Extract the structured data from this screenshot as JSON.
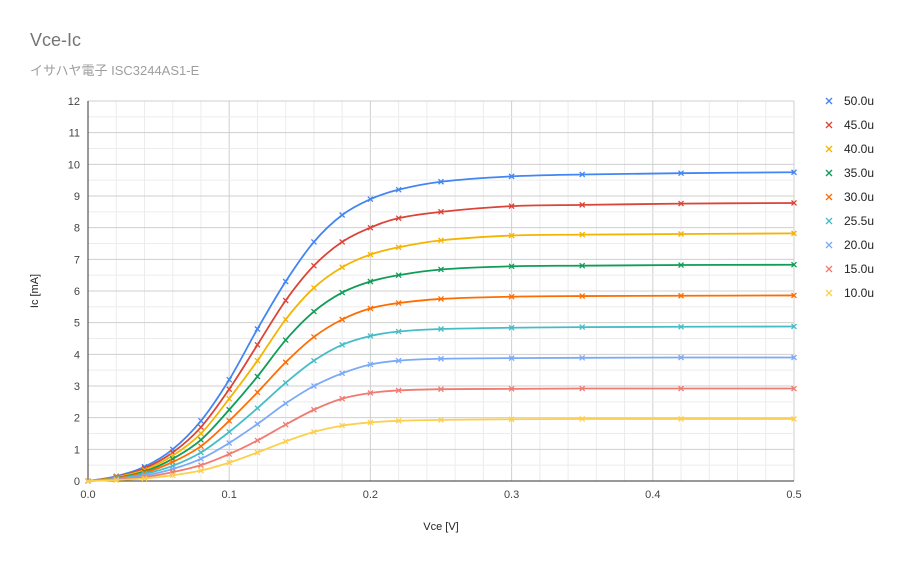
{
  "chart_data": {
    "type": "line",
    "title": "Vce-Ic",
    "subtitle": "イサハヤ電子 ISC3244AS1-E",
    "xlabel": "Vce [V]",
    "ylabel": "Ic [mA]",
    "xlim": [
      0,
      0.5
    ],
    "ylim": [
      0,
      12
    ],
    "x_ticks": [
      "0.0",
      "0.1",
      "0.2",
      "0.3",
      "0.4",
      "0.5"
    ],
    "y_ticks": [
      "0",
      "1",
      "2",
      "3",
      "4",
      "5",
      "6",
      "7",
      "8",
      "9",
      "10",
      "11",
      "12"
    ],
    "grid": true,
    "legend_position": "right",
    "series": [
      {
        "name": "50.0u",
        "color": "#4285f4",
        "sat": 9.75,
        "knee": 0.16,
        "points": [
          [
            0.0,
            0.0
          ],
          [
            0.02,
            0.15
          ],
          [
            0.04,
            0.45
          ],
          [
            0.06,
            1.0
          ],
          [
            0.08,
            1.9
          ],
          [
            0.1,
            3.2
          ],
          [
            0.12,
            4.8
          ],
          [
            0.14,
            6.3
          ],
          [
            0.16,
            7.55
          ],
          [
            0.18,
            8.4
          ],
          [
            0.2,
            8.9
          ],
          [
            0.22,
            9.2
          ],
          [
            0.25,
            9.45
          ],
          [
            0.3,
            9.62
          ],
          [
            0.35,
            9.68
          ],
          [
            0.42,
            9.72
          ],
          [
            0.5,
            9.75
          ]
        ]
      },
      {
        "name": "45.0u",
        "color": "#db4437",
        "sat": 8.78,
        "knee": 0.16,
        "points": [
          [
            0.0,
            0.0
          ],
          [
            0.02,
            0.13
          ],
          [
            0.04,
            0.4
          ],
          [
            0.06,
            0.9
          ],
          [
            0.08,
            1.7
          ],
          [
            0.1,
            2.9
          ],
          [
            0.12,
            4.3
          ],
          [
            0.14,
            5.7
          ],
          [
            0.16,
            6.8
          ],
          [
            0.18,
            7.55
          ],
          [
            0.2,
            8.0
          ],
          [
            0.22,
            8.3
          ],
          [
            0.25,
            8.5
          ],
          [
            0.3,
            8.68
          ],
          [
            0.35,
            8.72
          ],
          [
            0.42,
            8.76
          ],
          [
            0.5,
            8.78
          ]
        ]
      },
      {
        "name": "40.0u",
        "color": "#f4b400",
        "sat": 7.82,
        "knee": 0.16,
        "points": [
          [
            0.0,
            0.0
          ],
          [
            0.02,
            0.12
          ],
          [
            0.04,
            0.35
          ],
          [
            0.06,
            0.8
          ],
          [
            0.08,
            1.5
          ],
          [
            0.1,
            2.6
          ],
          [
            0.12,
            3.8
          ],
          [
            0.14,
            5.1
          ],
          [
            0.16,
            6.1
          ],
          [
            0.18,
            6.75
          ],
          [
            0.2,
            7.15
          ],
          [
            0.22,
            7.38
          ],
          [
            0.25,
            7.6
          ],
          [
            0.3,
            7.75
          ],
          [
            0.35,
            7.78
          ],
          [
            0.42,
            7.8
          ],
          [
            0.5,
            7.82
          ]
        ]
      },
      {
        "name": "35.0u",
        "color": "#0f9d58",
        "sat": 6.83,
        "knee": 0.16,
        "points": [
          [
            0.0,
            0.0
          ],
          [
            0.02,
            0.1
          ],
          [
            0.04,
            0.3
          ],
          [
            0.06,
            0.7
          ],
          [
            0.08,
            1.3
          ],
          [
            0.1,
            2.25
          ],
          [
            0.12,
            3.3
          ],
          [
            0.14,
            4.45
          ],
          [
            0.16,
            5.35
          ],
          [
            0.18,
            5.95
          ],
          [
            0.2,
            6.3
          ],
          [
            0.22,
            6.5
          ],
          [
            0.25,
            6.68
          ],
          [
            0.3,
            6.78
          ],
          [
            0.35,
            6.8
          ],
          [
            0.42,
            6.82
          ],
          [
            0.5,
            6.83
          ]
        ]
      },
      {
        "name": "30.0u",
        "color": "#ff6d01",
        "sat": 5.86,
        "knee": 0.16,
        "points": [
          [
            0.0,
            0.0
          ],
          [
            0.02,
            0.09
          ],
          [
            0.04,
            0.26
          ],
          [
            0.06,
            0.6
          ],
          [
            0.08,
            1.1
          ],
          [
            0.1,
            1.9
          ],
          [
            0.12,
            2.8
          ],
          [
            0.14,
            3.75
          ],
          [
            0.16,
            4.55
          ],
          [
            0.18,
            5.1
          ],
          [
            0.2,
            5.45
          ],
          [
            0.22,
            5.62
          ],
          [
            0.25,
            5.75
          ],
          [
            0.3,
            5.82
          ],
          [
            0.35,
            5.84
          ],
          [
            0.42,
            5.85
          ],
          [
            0.5,
            5.86
          ]
        ]
      },
      {
        "name": "25.5u",
        "color": "#46bdc6",
        "sat": 4.88,
        "knee": 0.16,
        "points": [
          [
            0.0,
            0.0
          ],
          [
            0.02,
            0.07
          ],
          [
            0.04,
            0.22
          ],
          [
            0.06,
            0.48
          ],
          [
            0.08,
            0.9
          ],
          [
            0.1,
            1.55
          ],
          [
            0.12,
            2.3
          ],
          [
            0.14,
            3.1
          ],
          [
            0.16,
            3.8
          ],
          [
            0.18,
            4.3
          ],
          [
            0.2,
            4.58
          ],
          [
            0.22,
            4.72
          ],
          [
            0.25,
            4.8
          ],
          [
            0.3,
            4.84
          ],
          [
            0.35,
            4.86
          ],
          [
            0.42,
            4.87
          ],
          [
            0.5,
            4.88
          ]
        ]
      },
      {
        "name": "20.0u",
        "color": "#7baaf7",
        "sat": 3.9,
        "knee": 0.16,
        "points": [
          [
            0.0,
            0.0
          ],
          [
            0.02,
            0.06
          ],
          [
            0.04,
            0.17
          ],
          [
            0.06,
            0.38
          ],
          [
            0.08,
            0.7
          ],
          [
            0.1,
            1.2
          ],
          [
            0.12,
            1.8
          ],
          [
            0.14,
            2.45
          ],
          [
            0.16,
            3.0
          ],
          [
            0.18,
            3.4
          ],
          [
            0.2,
            3.68
          ],
          [
            0.22,
            3.8
          ],
          [
            0.25,
            3.86
          ],
          [
            0.3,
            3.88
          ],
          [
            0.35,
            3.89
          ],
          [
            0.42,
            3.9
          ],
          [
            0.5,
            3.9
          ]
        ]
      },
      {
        "name": "15.0u",
        "color": "#f07b72",
        "sat": 2.92,
        "knee": 0.16,
        "points": [
          [
            0.0,
            0.0
          ],
          [
            0.02,
            0.04
          ],
          [
            0.04,
            0.12
          ],
          [
            0.06,
            0.28
          ],
          [
            0.08,
            0.5
          ],
          [
            0.1,
            0.85
          ],
          [
            0.12,
            1.28
          ],
          [
            0.14,
            1.78
          ],
          [
            0.16,
            2.25
          ],
          [
            0.18,
            2.6
          ],
          [
            0.2,
            2.78
          ],
          [
            0.22,
            2.86
          ],
          [
            0.25,
            2.9
          ],
          [
            0.3,
            2.91
          ],
          [
            0.35,
            2.92
          ],
          [
            0.42,
            2.92
          ],
          [
            0.5,
            2.92
          ]
        ]
      },
      {
        "name": "10.0u",
        "color": "#fcd04f",
        "sat": 1.96,
        "knee": 0.16,
        "points": [
          [
            0.0,
            0.0
          ],
          [
            0.02,
            0.03
          ],
          [
            0.04,
            0.08
          ],
          [
            0.06,
            0.18
          ],
          [
            0.08,
            0.33
          ],
          [
            0.1,
            0.58
          ],
          [
            0.12,
            0.9
          ],
          [
            0.14,
            1.25
          ],
          [
            0.16,
            1.55
          ],
          [
            0.18,
            1.75
          ],
          [
            0.2,
            1.85
          ],
          [
            0.22,
            1.9
          ],
          [
            0.25,
            1.93
          ],
          [
            0.3,
            1.95
          ],
          [
            0.35,
            1.96
          ],
          [
            0.42,
            1.96
          ],
          [
            0.5,
            1.96
          ]
        ]
      }
    ]
  }
}
